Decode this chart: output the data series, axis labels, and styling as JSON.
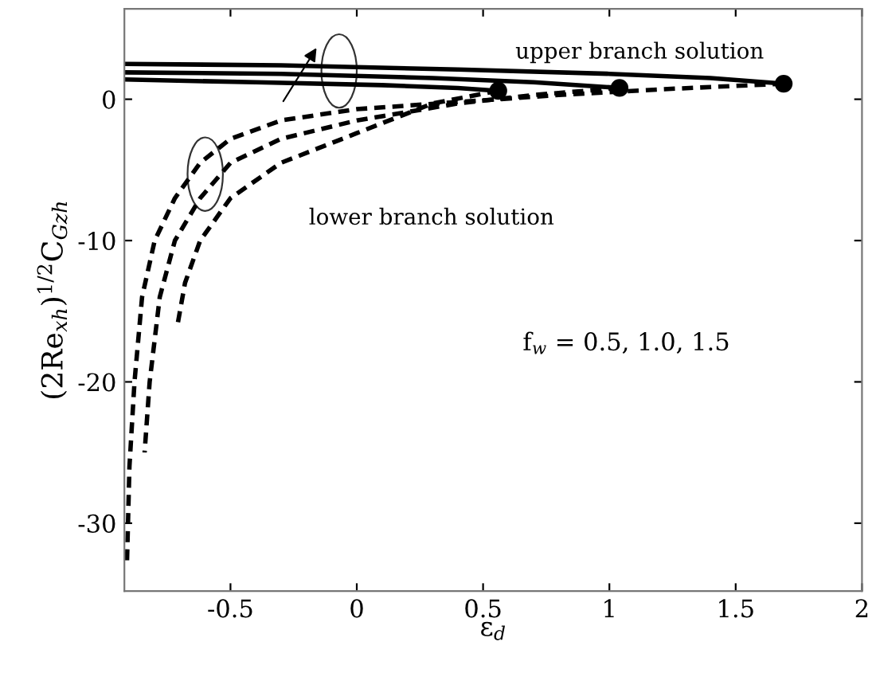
{
  "chart_data": {
    "type": "line",
    "xlabel": "ε$_{d}$",
    "ylabel": "(2Re$_{xh}$)$^{1/2}$C$_{Gzh}$",
    "xlim": [
      -0.92,
      2
    ],
    "ylim": [
      -34.8,
      6.4
    ],
    "xticks": [
      -0.5,
      0,
      0.5,
      1,
      1.5,
      2
    ],
    "yticks": [
      -30,
      -20,
      -10,
      0
    ],
    "grid": false,
    "legend": false,
    "annotations": [
      "upper branch solution",
      "lower branch solution",
      "f$_{w}$ = 0.5, 1.0, 1.5"
    ],
    "series": [
      {
        "color": "#000000",
        "line_style": "solid",
        "marker": "none",
        "x": [
          -0.92,
          -0.3,
          0.4,
          1.0,
          1.4,
          1.69
        ],
        "values": [
          2.5,
          2.4,
          2.1,
          1.8,
          1.5,
          1.1
        ]
      },
      {
        "color": "#000000",
        "line_style": "solid",
        "marker": "none",
        "x": [
          -0.92,
          -0.3,
          0.3,
          0.7,
          1.04
        ],
        "values": [
          1.9,
          1.8,
          1.5,
          1.2,
          0.8
        ]
      },
      {
        "color": "#000000",
        "line_style": "solid",
        "marker": "none",
        "x": [
          -0.92,
          -0.4,
          0.1,
          0.4,
          0.56
        ],
        "values": [
          1.4,
          1.2,
          1.0,
          0.8,
          0.6
        ]
      },
      {
        "color": "#000000",
        "line_style": "dashed",
        "marker": "none",
        "x": [
          1.69,
          1.2,
          0.8,
          0.4,
          0,
          -0.3,
          -0.5,
          -0.62,
          -0.72,
          -0.8,
          -0.85,
          -0.88,
          -0.9,
          -0.91
        ],
        "values": [
          1.1,
          0.7,
          0.3,
          -0.2,
          -0.7,
          -1.5,
          -2.8,
          -4.5,
          -7,
          -10,
          -14,
          -20,
          -26,
          -33
        ]
      },
      {
        "color": "#000000",
        "line_style": "dashed",
        "marker": "none",
        "x": [
          1.04,
          0.7,
          0.4,
          0,
          -0.3,
          -0.5,
          -0.62,
          -0.72,
          -0.78,
          -0.82,
          -0.84
        ],
        "values": [
          0.8,
          0.3,
          -0.3,
          -1.5,
          -2.8,
          -4.5,
          -7,
          -10,
          -14,
          -20,
          -25
        ]
      },
      {
        "color": "#000000",
        "line_style": "dashed",
        "marker": "none",
        "x": [
          0.56,
          0.3,
          0,
          -0.3,
          -0.5,
          -0.62,
          -0.68,
          -0.71
        ],
        "values": [
          0.6,
          -0.3,
          -2.4,
          -4.5,
          -7,
          -10,
          -13,
          -16
        ]
      },
      {
        "type": "scatter",
        "color": "#000000",
        "marker": "circle",
        "x": [
          0.56,
          1.04,
          1.69
        ],
        "values": [
          0.6,
          0.8,
          1.1
        ]
      }
    ]
  }
}
